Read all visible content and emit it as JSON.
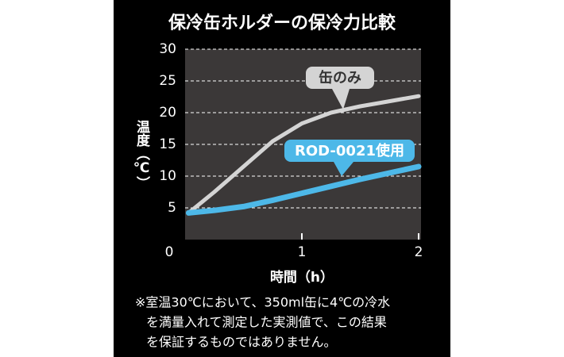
{
  "chart_data": {
    "type": "line",
    "title": "保冷缶ホルダーの保冷力比較",
    "y_label": "温度（℃）",
    "x_label": "時間（h）",
    "x": [
      0.03,
      0.25,
      0.5,
      0.75,
      1,
      1.25,
      1.5,
      1.75,
      2
    ],
    "series": [
      {
        "name": "缶のみ",
        "color": "#d4d4d4",
        "values": [
          4.2,
          7.5,
          11.5,
          15.5,
          18.3,
          20,
          21,
          21.8,
          22.6
        ]
      },
      {
        "name": "ROD-0021使用",
        "color": "#4db8e8",
        "values": [
          4.2,
          4.6,
          5.2,
          6.2,
          7.3,
          8.4,
          9.5,
          10.5,
          11.5
        ]
      }
    ],
    "xlim": [
      0,
      2
    ],
    "xticks": [
      0,
      1,
      2
    ],
    "ylim": [
      0,
      30
    ],
    "yticks": [
      5,
      10,
      15,
      20,
      25,
      30
    ],
    "grid": true,
    "notes": [
      "※室温30℃において、350ml缶に4℃の冷水",
      "を満量入れて測定した実測値で、この結果",
      "を保証するものではありません。"
    ]
  }
}
